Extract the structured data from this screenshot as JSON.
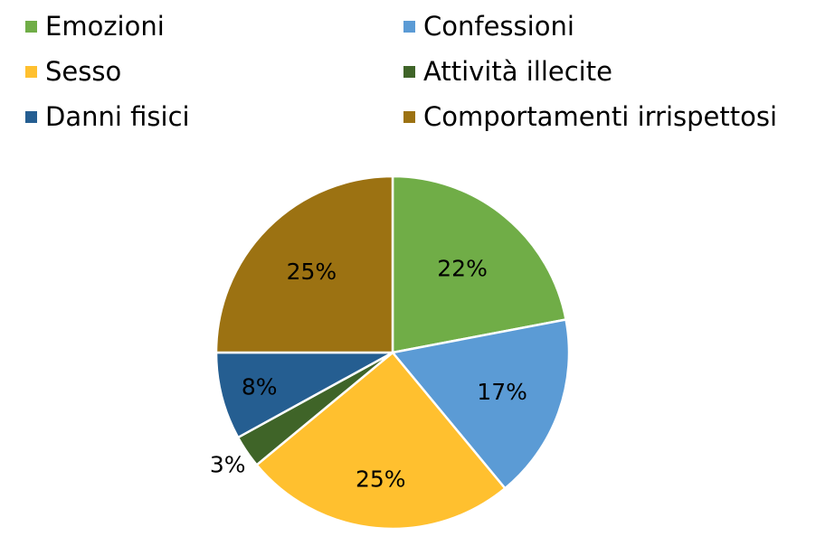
{
  "chart_data": {
    "type": "pie",
    "categories": [
      "Emozioni",
      "Confessioni",
      "Sesso",
      "Attività illecite",
      "Danni fisici",
      "Comportamenti irrispettosi"
    ],
    "values": [
      22,
      17,
      25,
      3,
      8,
      25
    ],
    "data_labels": [
      "22%",
      "17%",
      "25%",
      "3%",
      "8%",
      "25%"
    ],
    "colors": [
      "#70AD47",
      "#5B9BD5",
      "#FFC02F",
      "#3F6428",
      "#255E91",
      "#9C7212"
    ],
    "legend_position": "top"
  }
}
